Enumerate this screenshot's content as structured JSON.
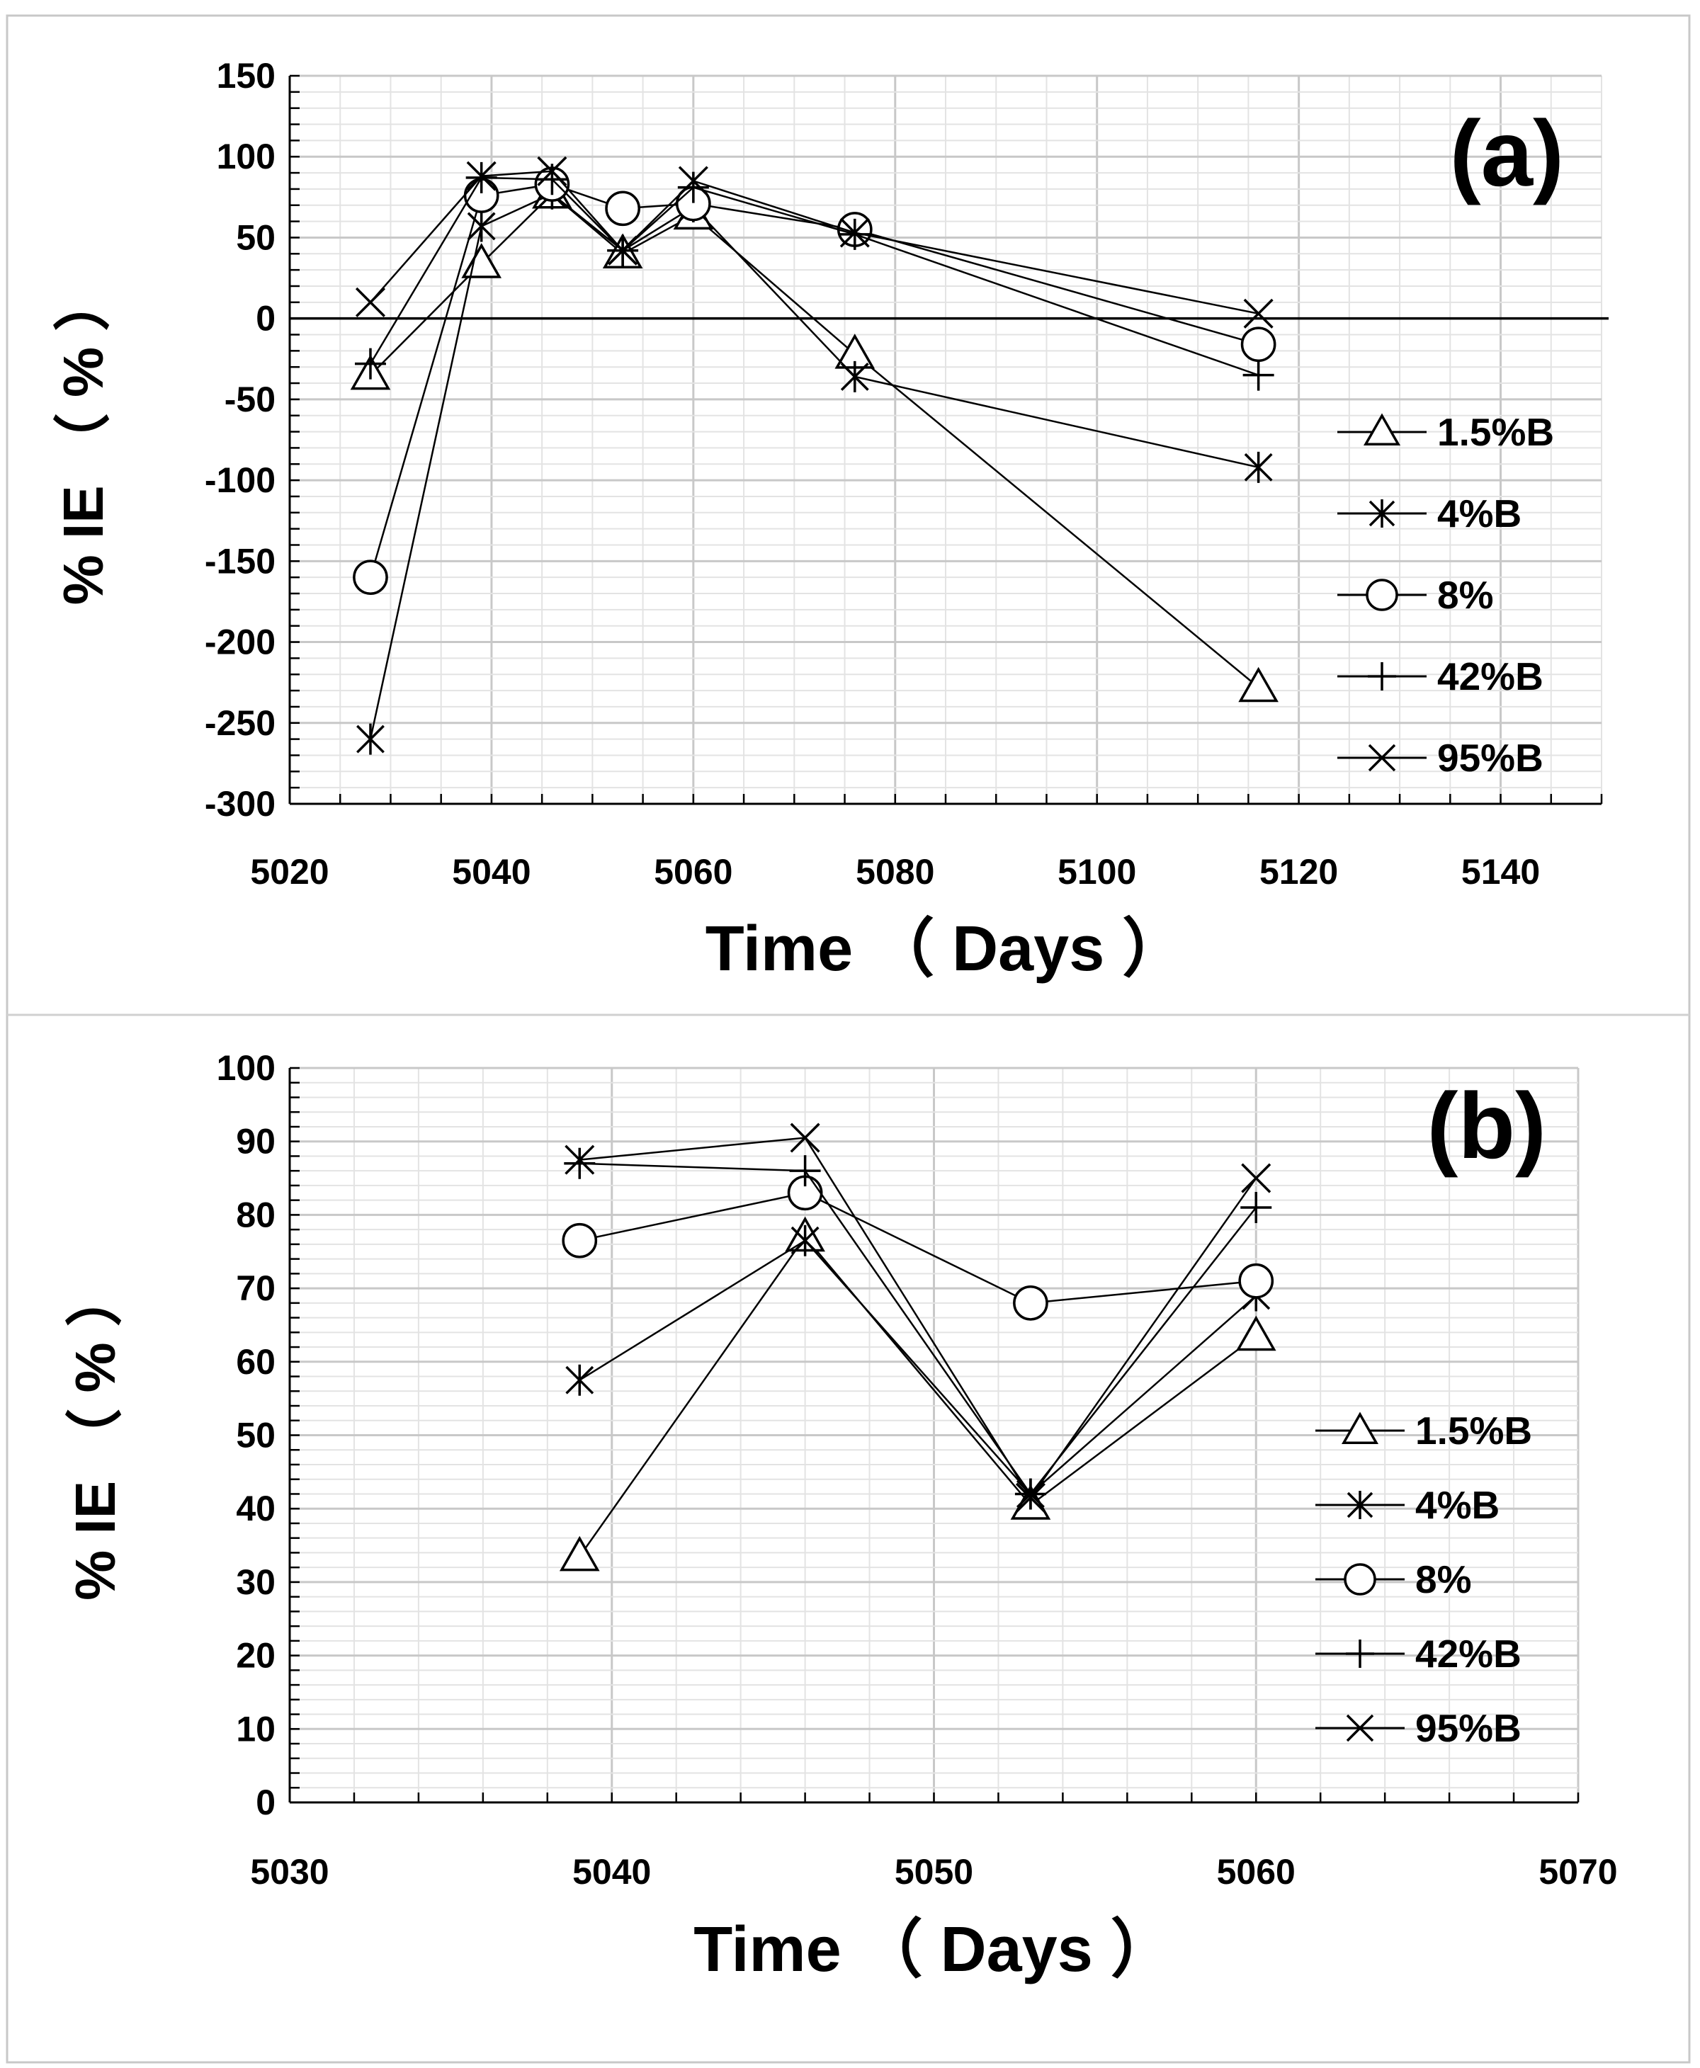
{
  "chart_data": [
    {
      "type": "line",
      "panel_label": "(a)",
      "xlabel": "Time （ Days ）",
      "ylabel": "% IE （ % ）",
      "xlim": [
        5020,
        5150
      ],
      "ylim": [
        -300,
        150
      ],
      "x_ticks": [
        5020,
        5040,
        5060,
        5080,
        5100,
        5120,
        5140
      ],
      "y_ticks": [
        -300,
        -250,
        -200,
        -150,
        -100,
        -50,
        0,
        50,
        100,
        150
      ],
      "x_minor": 5,
      "y_minor": 10,
      "zero_line": true,
      "grid": true,
      "legend_position": "right",
      "x": [
        5028,
        5039,
        5046,
        5053,
        5060,
        5076,
        5116
      ],
      "series": [
        {
          "name": "1.5%B",
          "marker": "triangle",
          "values": [
            -35,
            34,
            77,
            40,
            64,
            -22,
            -228
          ]
        },
        {
          "name": "4%B",
          "marker": "asterisk",
          "values": [
            -260,
            57,
            77,
            42,
            69,
            -36,
            -92
          ]
        },
        {
          "name": "8%",
          "marker": "circle",
          "values": [
            -160,
            76,
            83,
            68,
            71,
            55,
            -16
          ]
        },
        {
          "name": "42%B",
          "marker": "plus",
          "values": [
            -28,
            87,
            86,
            42,
            81,
            52,
            -35
          ]
        },
        {
          "name": "95%B",
          "marker": "x",
          "values": [
            10,
            88,
            91,
            42,
            85,
            53,
            3
          ]
        }
      ]
    },
    {
      "type": "line",
      "panel_label": "(b)",
      "xlabel": "Time （ Days ）",
      "ylabel": "% IE （ % ）",
      "xlim": [
        5030,
        5070
      ],
      "ylim": [
        0,
        100
      ],
      "x_ticks": [
        5030,
        5040,
        5050,
        5060,
        5070
      ],
      "y_ticks": [
        0,
        10,
        20,
        30,
        40,
        50,
        60,
        70,
        80,
        90,
        100
      ],
      "x_minor": 2,
      "y_minor": 2,
      "zero_line": false,
      "grid": true,
      "legend_position": "right",
      "x": [
        5039,
        5046,
        5053,
        5060
      ],
      "series": [
        {
          "name": "1.5%B",
          "marker": "triangle",
          "values": [
            33.5,
            77,
            40.5,
            63.5
          ]
        },
        {
          "name": "4%B",
          "marker": "asterisk",
          "values": [
            57.5,
            76.5,
            42,
            69
          ]
        },
        {
          "name": "8%",
          "marker": "circle",
          "values": [
            76.5,
            83,
            68,
            71
          ]
        },
        {
          "name": "42%B",
          "marker": "plus",
          "values": [
            87,
            86,
            42,
            81
          ]
        },
        {
          "name": "95%B",
          "marker": "x",
          "values": [
            87.5,
            90.5,
            41.5,
            85
          ]
        }
      ]
    }
  ]
}
